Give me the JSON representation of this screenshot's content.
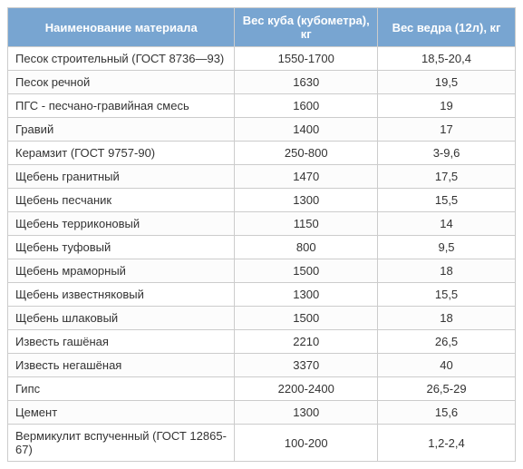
{
  "table": {
    "columns": [
      "Наименование материала",
      "Вес куба (кубометра), кг",
      "Вес ведра (12л), кг"
    ],
    "col_align": [
      "left",
      "center",
      "center"
    ],
    "header_bg": "#78a5d1",
    "header_fg": "#ffffff",
    "border_color": "#cccccc",
    "row_bg": "#ffffff",
    "font_size": 13,
    "rows": [
      [
        "Песок строительный (ГОСТ 8736—93)",
        "1550-1700",
        "18,5-20,4"
      ],
      [
        "Песок речной",
        "1630",
        "19,5"
      ],
      [
        "ПГС - песчано-гравийная смесь",
        "1600",
        "19"
      ],
      [
        "Гравий",
        "1400",
        "17"
      ],
      [
        "Керамзит (ГОСТ 9757-90)",
        "250-800",
        "3-9,6"
      ],
      [
        "Щебень гранитный",
        "1470",
        "17,5"
      ],
      [
        "Щебень песчаник",
        "1300",
        "15,5"
      ],
      [
        "Щебень терриконовый",
        "1150",
        "14"
      ],
      [
        "Щебень туфовый",
        "800",
        "9,5"
      ],
      [
        "Щебень мраморный",
        "1500",
        "18"
      ],
      [
        "Щебень известняковый",
        "1300",
        "15,5"
      ],
      [
        "Щебень шлаковый",
        "1500",
        "18"
      ],
      [
        "Известь гашёная",
        "2210",
        "26,5"
      ],
      [
        "Известь негашёная",
        "3370",
        "40"
      ],
      [
        "Гипс",
        "2200-2400",
        "26,5-29"
      ],
      [
        "Цемент",
        "1300",
        "15,6"
      ],
      [
        "Вермикулит вспученный (ГОСТ 12865-67)",
        "100-200",
        "1,2-2,4"
      ]
    ]
  }
}
